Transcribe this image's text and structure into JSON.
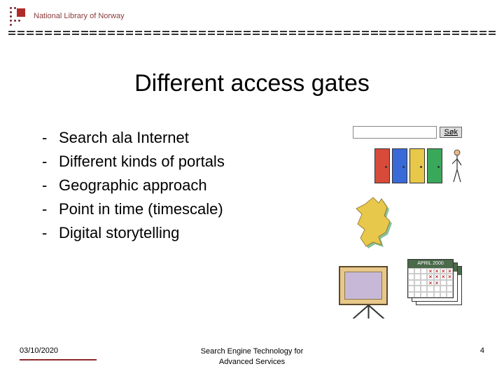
{
  "header": {
    "org_name": "National Library of Norway",
    "logo_color": "#b02a2a",
    "dot_color": "#7a2a2a"
  },
  "title": "Different access gates",
  "bullets": [
    "Search ala Internet",
    "Different kinds of portals",
    "Geographic approach",
    "Point in time (timescale)",
    "Digital storytelling"
  ],
  "search_widget": {
    "button_label": "Søk"
  },
  "doors": {
    "colors": [
      "#d84a3a",
      "#3a6ad8",
      "#e8c84a",
      "#3aa85a"
    ]
  },
  "map": {
    "fill": "#e8c84a",
    "shadow": "#3a9a5a"
  },
  "calendar": {
    "header": "APRIL 2000",
    "head_bg": "#4a6a4a",
    "x_color": "#c02a2a",
    "cross_cells": [
      3,
      4,
      5,
      6,
      10,
      11,
      12,
      13,
      17,
      18
    ]
  },
  "footer": {
    "date": "03/10/2020",
    "center_line1": "Search Engine Technology for",
    "center_line2": "Advanced Services",
    "page": "4",
    "underline_color": "#8a2a2a"
  },
  "colors": {
    "text": "#000000",
    "background": "#ffffff"
  }
}
